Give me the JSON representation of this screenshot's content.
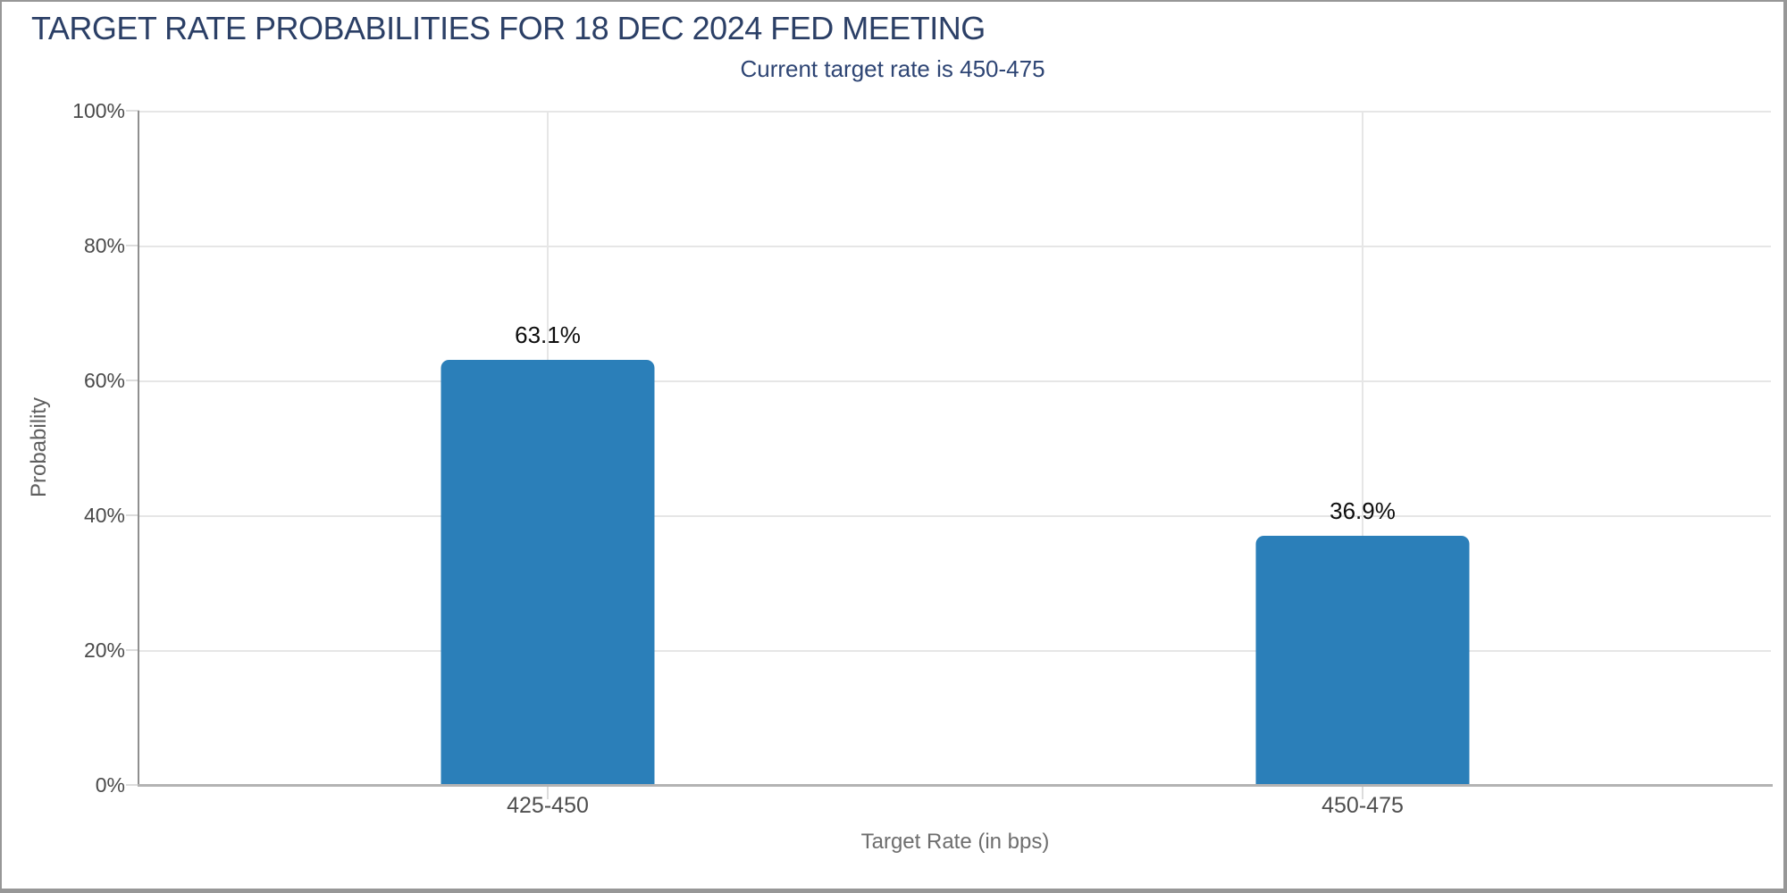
{
  "window": {
    "background": "#ffffff",
    "border_color": "#979797"
  },
  "chart_data": {
    "type": "bar",
    "title": "TARGET RATE PROBABILITIES FOR 18 DEC 2024 FED MEETING",
    "subtitle": "Current target rate is 450-475",
    "categories": [
      "425-450",
      "450-475"
    ],
    "values": [
      63.1,
      36.9
    ],
    "data_labels": [
      "63.1%",
      "36.9%"
    ],
    "xlabel": "Target Rate (in bps)",
    "ylabel": "Probability",
    "ylim": [
      0,
      100
    ],
    "ytick_step": 20,
    "ytick_labels": [
      "100%",
      "80%",
      "60%",
      "40%",
      "20%",
      "0%"
    ],
    "grid": true,
    "legend_position": "none",
    "colors": {
      "bar": "#2b7fb9",
      "title_text": "#2b3f66",
      "subtitle_text": "#2e4574",
      "gridline": "#e6e6e6",
      "axis_text": "#4a4a4a",
      "axis_title_text": "#6e6e6e",
      "data_label_text": "#0d0d0d"
    }
  }
}
